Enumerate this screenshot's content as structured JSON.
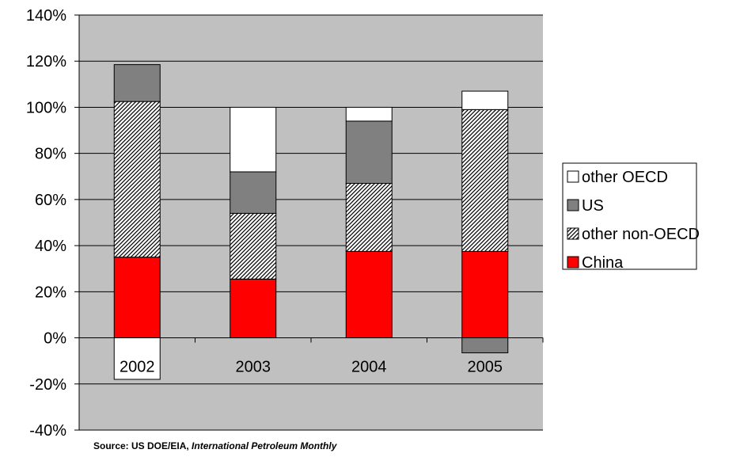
{
  "chart_data": {
    "type": "bar",
    "stacked": true,
    "categories": [
      "2002",
      "2003",
      "2004",
      "2005"
    ],
    "ylim": [
      -0.4,
      1.4
    ],
    "yticks": [
      -0.4,
      -0.2,
      0,
      0.2,
      0.4,
      0.6,
      0.8,
      1.0,
      1.2,
      1.4
    ],
    "ytick_labels": [
      "-40%",
      "-20%",
      "0%",
      "20%",
      "40%",
      "60%",
      "80%",
      "100%",
      "120%",
      "140%"
    ],
    "grid": true,
    "legend_position": "right",
    "series": [
      {
        "name": "China",
        "values": [
          0.35,
          0.255,
          0.375,
          0.375
        ],
        "color": "#ff0000",
        "pattern": "solid"
      },
      {
        "name": "other non-OECD",
        "values": [
          0.675,
          0.285,
          0.295,
          0.615
        ],
        "color": "#ffffff",
        "pattern": "hatch"
      },
      {
        "name": "US",
        "values": [
          0.16,
          0.18,
          0.27,
          -0.065
        ],
        "color": "#808080",
        "pattern": "solid"
      },
      {
        "name": "other OECD",
        "values": [
          -0.18,
          0.28,
          0.06,
          0.08
        ],
        "color": "#ffffff",
        "pattern": "solid"
      }
    ],
    "legend_order": [
      "other OECD",
      "US",
      "other non-OECD",
      "China"
    ],
    "plot_background": "#c0c0c0"
  },
  "source": {
    "prefix": "Source: US DOE/EIA, ",
    "publication": "International Petroleum Monthly"
  }
}
